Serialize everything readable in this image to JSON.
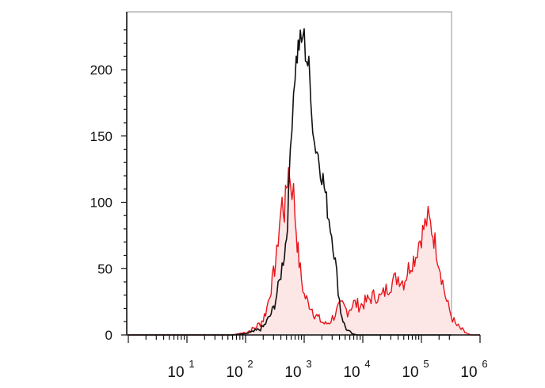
{
  "chart_data": {
    "type": "area",
    "title": "",
    "xlabel": "",
    "ylabel": "",
    "x_scale": "log",
    "xlim": [
      1,
      1000000
    ],
    "ylim": [
      0,
      235
    ],
    "grid": false,
    "y_ticks": [
      {
        "value": 0,
        "label": "0"
      },
      {
        "value": 50,
        "label": "50"
      },
      {
        "value": 100,
        "label": "100"
      },
      {
        "value": 150,
        "label": "150"
      },
      {
        "value": 200,
        "label": "200"
      }
    ],
    "x_ticks": [
      {
        "value": 10,
        "base": "10",
        "exp": "1"
      },
      {
        "value": 100,
        "base": "10",
        "exp": "2"
      },
      {
        "value": 1000,
        "base": "10",
        "exp": "3"
      },
      {
        "value": 10000,
        "base": "10",
        "exp": "4"
      },
      {
        "value": 100000,
        "base": "10",
        "exp": "5"
      },
      {
        "value": 1000000,
        "base": "10",
        "exp": "6"
      }
    ],
    "series": [
      {
        "color": "#e8141b",
        "fill": "#fde6e6",
        "x": [
          1,
          10,
          60,
          100,
          130,
          170,
          200,
          230,
          260,
          300,
          340,
          380,
          420,
          460,
          500,
          540,
          580,
          620,
          660,
          700,
          760,
          820,
          900,
          1000,
          1150,
          1300,
          1500,
          1700,
          2000,
          2300,
          2700,
          3200,
          3800,
          4500,
          5500,
          7000,
          9000,
          12000,
          16000,
          20000,
          25000,
          32000,
          40000,
          50000,
          60000,
          70000,
          80000,
          90000,
          100000,
          115000,
          130000,
          150000,
          170000,
          200000,
          230000,
          270000,
          320000,
          380000,
          450000,
          550000,
          700000,
          1000000
        ],
        "y": [
          0,
          0,
          0,
          2,
          4,
          8,
          12,
          20,
          32,
          45,
          60,
          85,
          100,
          92,
          112,
          125,
          118,
          110,
          108,
          90,
          70,
          55,
          42,
          30,
          25,
          22,
          16,
          13,
          10,
          8,
          10,
          14,
          20,
          22,
          18,
          24,
          22,
          26,
          30,
          28,
          34,
          40,
          44,
          40,
          50,
          56,
          60,
          70,
          75,
          83,
          88,
          80,
          70,
          55,
          40,
          25,
          15,
          8,
          5,
          2,
          0,
          0
        ]
      },
      {
        "color": "#111111",
        "fill": "none",
        "x": [
          1,
          10,
          60,
          100,
          130,
          170,
          200,
          230,
          260,
          300,
          340,
          380,
          420,
          460,
          500,
          540,
          580,
          620,
          660,
          700,
          760,
          820,
          900,
          950,
          1000,
          1050,
          1100,
          1200,
          1300,
          1400,
          1500,
          1650,
          1800,
          2000,
          2200,
          2500,
          2800,
          3100,
          3400,
          3800,
          4200,
          4800,
          5500,
          6500,
          8000,
          10000,
          100000,
          1000000
        ],
        "y": [
          0,
          0,
          0,
          1,
          2,
          4,
          6,
          10,
          14,
          20,
          30,
          40,
          52,
          62,
          75,
          100,
          140,
          165,
          185,
          200,
          212,
          220,
          218,
          228,
          222,
          215,
          210,
          200,
          185,
          160,
          145,
          140,
          132,
          122,
          112,
          95,
          82,
          70,
          55,
          35,
          18,
          8,
          3,
          1,
          0,
          0,
          0,
          0
        ]
      }
    ]
  }
}
